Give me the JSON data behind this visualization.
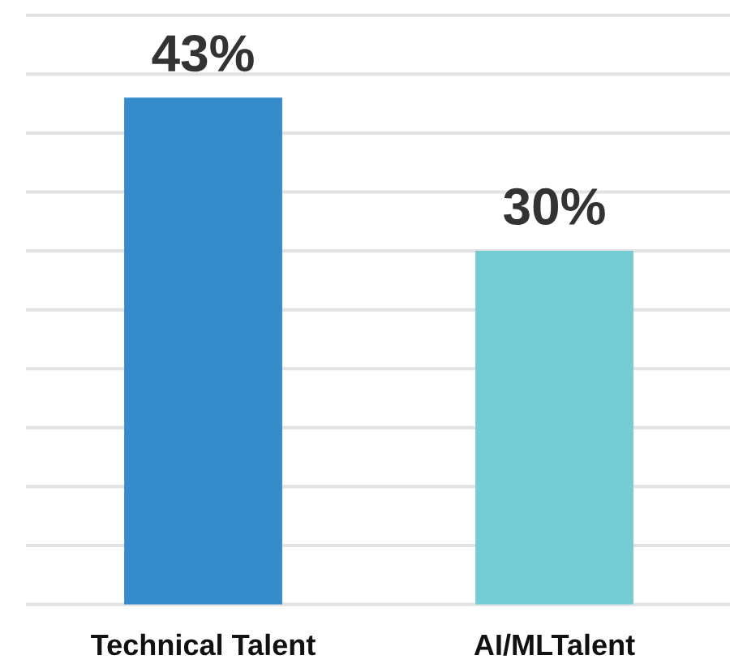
{
  "chart_data": {
    "type": "bar",
    "categories": [
      "Technical Talent",
      "AI/MLTalent"
    ],
    "values": [
      43,
      30
    ],
    "colors": [
      "#368cca",
      "#74cdd5"
    ],
    "value_labels": [
      "43%",
      "30%"
    ],
    "ylim": [
      0,
      50
    ],
    "yticks": [
      {
        "value": 0,
        "label": null
      },
      {
        "value": 5,
        "label": null
      },
      {
        "value": 10,
        "label": null
      },
      {
        "value": 15,
        "label": null
      },
      {
        "value": 20,
        "label": null
      },
      {
        "value": 25,
        "label": null
      },
      {
        "value": 30,
        "label": null
      },
      {
        "value": 35,
        "label": null
      },
      {
        "value": 40,
        "label": null
      },
      {
        "value": 45,
        "label": null
      },
      {
        "value": 50,
        "label": null
      }
    ],
    "grid": "y",
    "tick_labels": "x"
  }
}
